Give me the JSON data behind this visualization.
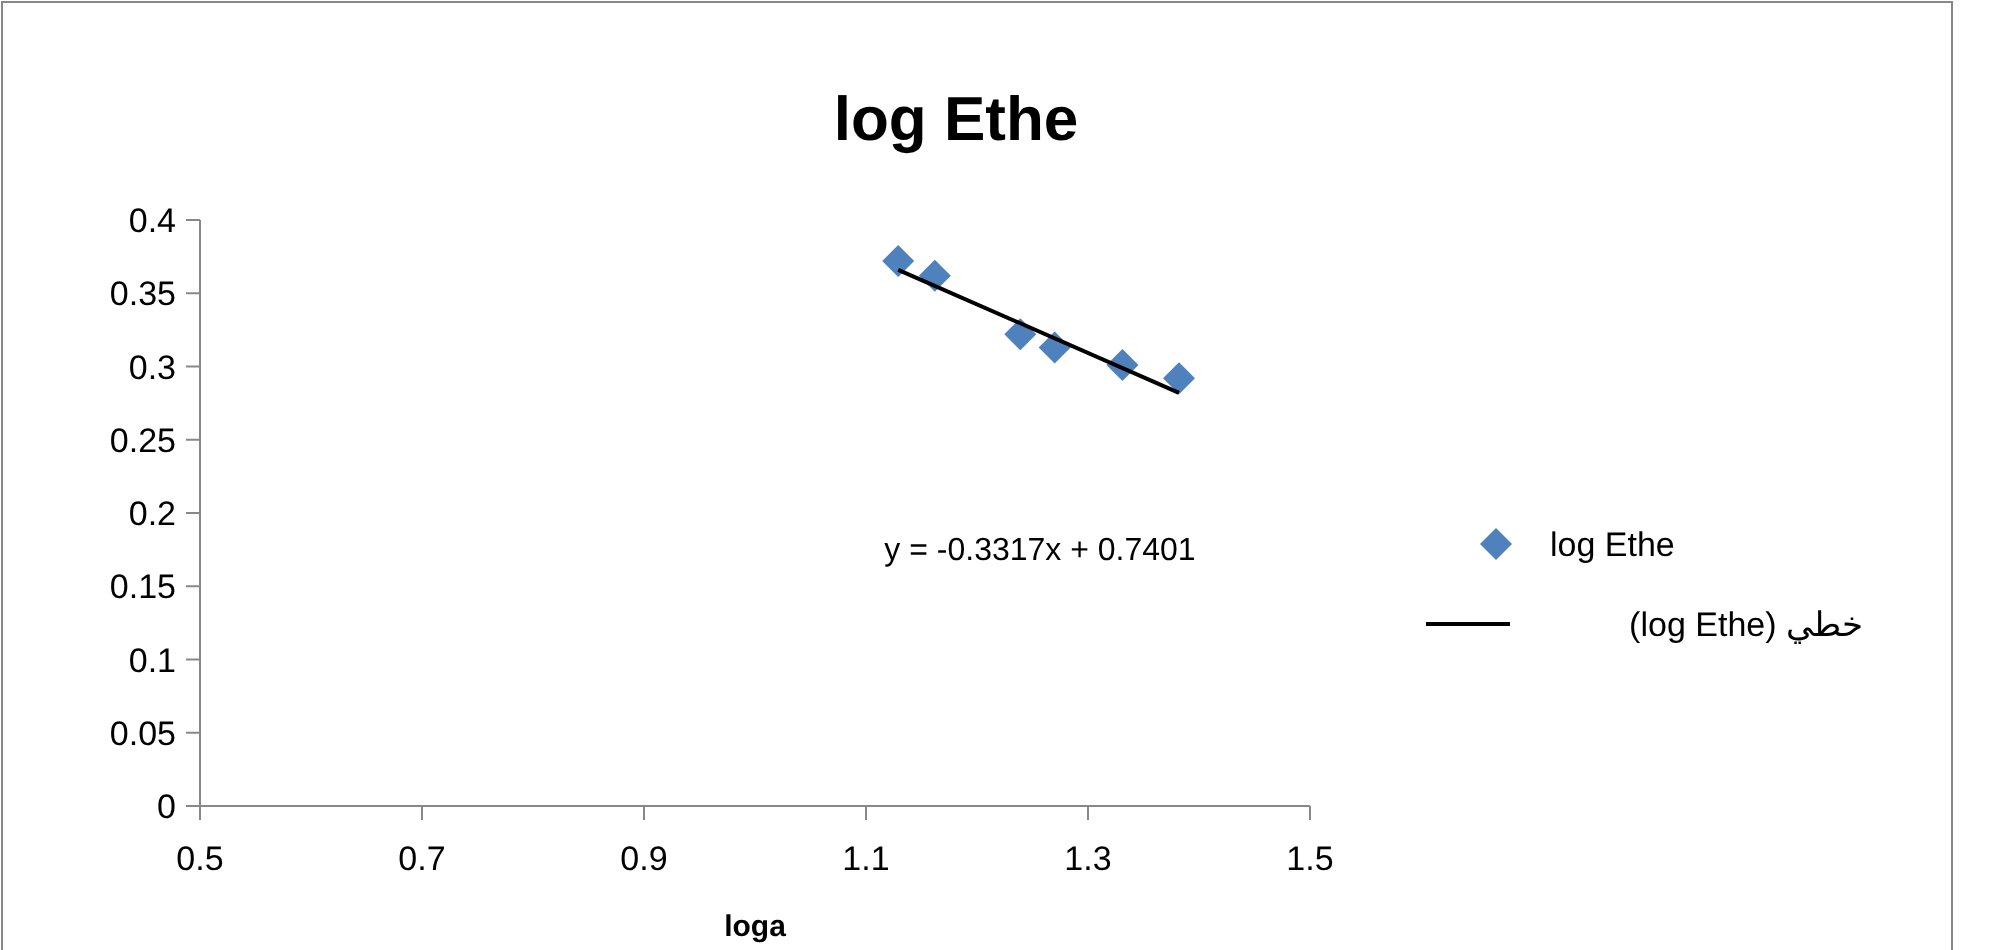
{
  "chart_data": {
    "type": "scatter",
    "title": "log Ethe",
    "xlabel": "loga",
    "series": [
      {
        "name": "log Ethe",
        "type": "scatter",
        "color": "#4f81bd",
        "marker": "diamond",
        "x": [
          1.129,
          1.162,
          1.239,
          1.27,
          1.331,
          1.382
        ],
        "values": [
          0.372,
          0.362,
          0.322,
          0.313,
          0.301,
          0.292
        ]
      },
      {
        "name": "خطي (log Ethe)",
        "type": "line",
        "color": "#000000",
        "marker": "none",
        "line_style": "solid",
        "x": [
          1.129,
          1.382
        ],
        "values": [
          0.366,
          0.282
        ]
      }
    ],
    "xlim": [
      0.5,
      1.5
    ],
    "xticks": [
      0.5,
      0.7,
      0.9,
      1.1,
      1.3,
      1.5
    ],
    "ylim": [
      0,
      0.4
    ],
    "yticks": [
      0,
      0.05,
      0.1,
      0.15,
      0.2,
      0.25,
      0.3,
      0.35,
      0.4
    ],
    "annotations": [
      "y = -0.3317x + 0.7401"
    ],
    "legend": "right",
    "grid": false
  }
}
